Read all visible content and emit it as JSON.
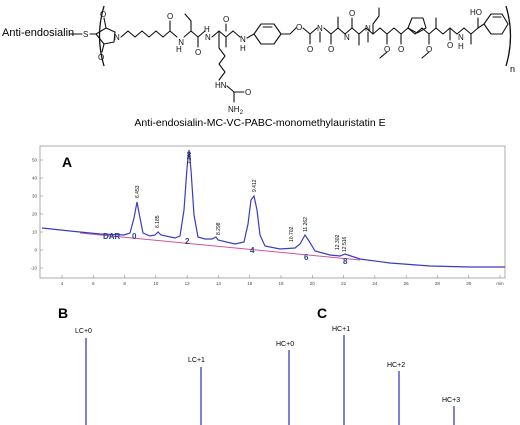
{
  "structure": {
    "antibody_label": "Anti-endosialin",
    "sulfur": "S",
    "o_atom": "O",
    "n_atom": "N",
    "h_atom": "H",
    "nh2": "NH",
    "nh2_sub": "2",
    "ho": "HO",
    "n_subscript": "n",
    "caption": "Anti-endosialin-MC-VC-PABC-monomethylauristatin E"
  },
  "panelA": {
    "letter": "A",
    "dar_label": "DAR",
    "dar_values": [
      "0",
      "2",
      "4",
      "6",
      "8"
    ],
    "peak_labels": [
      "6.453",
      "6.185",
      "7.262",
      "8.298",
      "9.412",
      "10.702",
      "11.262",
      "12.302",
      "12.516"
    ],
    "y_ticks": [
      "50",
      "40",
      "30",
      "20",
      "10",
      "0",
      "-10"
    ],
    "x_ticks": [
      "4",
      "6",
      "8",
      "10",
      "12",
      "14",
      "16",
      "18",
      "20",
      "22",
      "24",
      "26",
      "28",
      "30",
      "min"
    ]
  },
  "panelB": {
    "letter": "B",
    "peaks": [
      "LC+0",
      "LC+1"
    ]
  },
  "panelC": {
    "letter": "C",
    "peaks": [
      "HC+0",
      "HC+1",
      "HC+2",
      "HC+3"
    ]
  }
}
